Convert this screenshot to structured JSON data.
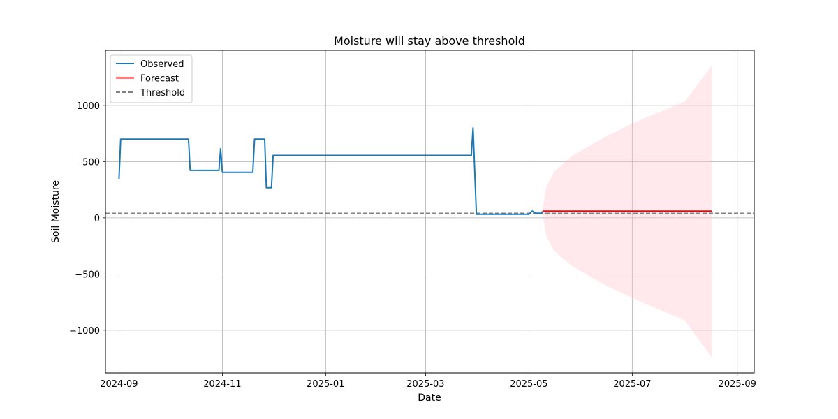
{
  "chart_data": {
    "type": "line",
    "title": "Moisture will stay above threshold",
    "xlabel": "Date",
    "ylabel": "Soil Moisture",
    "xlim": [
      "2024-08-24",
      "2025-09-11"
    ],
    "ylim": [
      -1380,
      1490
    ],
    "x_ticks": [
      "2024-09-01",
      "2024-11-01",
      "2025-01-01",
      "2025-03-01",
      "2025-05-01",
      "2025-07-01",
      "2025-09-01"
    ],
    "x_tick_labels": [
      "2024-09",
      "2024-11",
      "2025-01",
      "2025-03",
      "2025-05",
      "2025-07",
      "2025-09"
    ],
    "y_ticks": [
      -1000,
      -500,
      0,
      500,
      1000
    ],
    "y_tick_labels": [
      "−1000",
      "−500",
      "0",
      "500",
      "1000"
    ],
    "grid": true,
    "legend_position": "top-left",
    "series": [
      {
        "name": "Observed",
        "color": "#1f77b4",
        "points": [
          [
            "2024-09-01",
            345
          ],
          [
            "2024-09-02",
            700
          ],
          [
            "2024-10-12",
            700
          ],
          [
            "2024-10-13",
            422
          ],
          [
            "2024-10-30",
            422
          ],
          [
            "2024-10-31",
            615
          ],
          [
            "2024-11-01",
            405
          ],
          [
            "2024-11-19",
            405
          ],
          [
            "2024-11-20",
            700
          ],
          [
            "2024-11-26",
            700
          ],
          [
            "2024-11-27",
            268
          ],
          [
            "2024-11-30",
            268
          ],
          [
            "2024-12-01",
            555
          ],
          [
            "2025-03-28",
            555
          ],
          [
            "2025-03-29",
            800
          ],
          [
            "2025-03-31",
            32
          ],
          [
            "2025-05-01",
            32
          ],
          [
            "2025-05-03",
            60
          ],
          [
            "2025-05-05",
            42
          ],
          [
            "2025-05-08",
            40
          ],
          [
            "2025-05-09",
            55
          ]
        ]
      },
      {
        "name": "Forecast",
        "color": "#ff0000",
        "points": [
          [
            "2025-05-09",
            60
          ],
          [
            "2025-08-17",
            60
          ]
        ]
      },
      {
        "name": "Threshold",
        "color": "#808080",
        "style": "dashed",
        "value": 40
      }
    ],
    "confidence_band": {
      "color": "#ffc0cb",
      "points": [
        [
          "2025-05-09",
          60,
          60
        ],
        [
          "2025-05-11",
          266,
          -155
        ],
        [
          "2025-05-16",
          410,
          -297
        ],
        [
          "2025-05-26",
          548,
          -425
        ],
        [
          "2025-06-15",
          720,
          -600
        ],
        [
          "2025-07-01",
          839,
          -713
        ],
        [
          "2025-07-16",
          935,
          -812
        ],
        [
          "2025-08-01",
          1033,
          -912
        ],
        [
          "2025-08-17",
          1355,
          -1245
        ]
      ]
    }
  }
}
